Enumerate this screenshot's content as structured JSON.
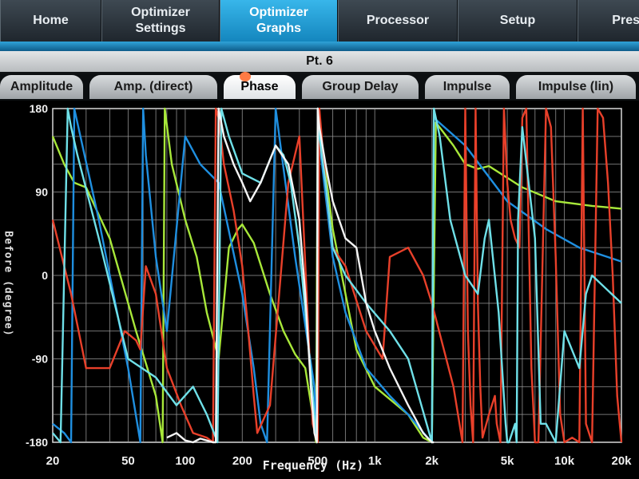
{
  "nav": {
    "items": [
      {
        "label": "Home"
      },
      {
        "label": "Optimizer Settings"
      },
      {
        "label": "Optimizer Graphs"
      },
      {
        "label": "Processor"
      },
      {
        "label": "Setup"
      },
      {
        "label": "Pres"
      }
    ],
    "active_index": 2
  },
  "point_title": "Pt. 6",
  "tabs": {
    "items": [
      {
        "label": "Amplitude"
      },
      {
        "label": "Amp. (direct)"
      },
      {
        "label": "Phase"
      },
      {
        "label": "Group Delay"
      },
      {
        "label": "Impulse"
      },
      {
        "label": "Impulse (lin)"
      }
    ],
    "active_index": 2
  },
  "colors": {
    "accent": "#1e9fd8",
    "plot_bg": "#000000",
    "grid": "#9a9a9a",
    "series_red": "#e8402a",
    "series_blue": "#1f8fe0",
    "series_green": "#a8e83a",
    "series_cyan": "#6fe0e8",
    "series_white": "#f4f4f4"
  },
  "chart_data": {
    "type": "line",
    "xlabel": "Frequency (Hz)",
    "ylabel": "Before (degree)",
    "xscale": "log",
    "xlim": [
      20,
      20000
    ],
    "ylim": [
      -180,
      180
    ],
    "x_ticks": [
      {
        "value": 20,
        "label": "20"
      },
      {
        "value": 50,
        "label": "50"
      },
      {
        "value": 100,
        "label": "100"
      },
      {
        "value": 200,
        "label": "200"
      },
      {
        "value": 500,
        "label": "500"
      },
      {
        "value": 1000,
        "label": "1k"
      },
      {
        "value": 2000,
        "label": "2k"
      },
      {
        "value": 5000,
        "label": "5k"
      },
      {
        "value": 10000,
        "label": "10k"
      },
      {
        "value": 20000,
        "label": "20k"
      }
    ],
    "y_ticks": [
      {
        "value": 180,
        "label": "180"
      },
      {
        "value": 90,
        "label": "90"
      },
      {
        "value": 0,
        "label": "0"
      },
      {
        "value": -90,
        "label": "-90"
      },
      {
        "value": -180,
        "label": "-180"
      }
    ],
    "grid": true,
    "series": [
      {
        "color": "#a8e83a",
        "x": [
          20,
          23,
          26,
          30,
          40,
          55,
          70,
          76,
          78,
          85,
          100,
          115,
          130,
          150,
          170,
          190,
          200,
          230,
          280,
          330,
          380,
          430,
          470,
          490,
          500,
          520,
          600,
          800,
          1000,
          1500,
          1800,
          2000,
          2100,
          2600,
          3000,
          3500,
          4000,
          6000,
          9000,
          14000,
          20000
        ],
        "y": [
          150,
          120,
          100,
          95,
          40,
          -60,
          -130,
          -180,
          180,
          120,
          60,
          20,
          -40,
          -90,
          30,
          50,
          55,
          35,
          -20,
          -60,
          -85,
          -100,
          -150,
          -180,
          180,
          150,
          50,
          -80,
          -120,
          -150,
          -175,
          -180,
          165,
          140,
          120,
          115,
          118,
          95,
          80,
          75,
          72
        ]
      },
      {
        "color": "#1f8fe0",
        "x": [
          20,
          23,
          25,
          26,
          35,
          50,
          58,
          60,
          62,
          70,
          80,
          100,
          120,
          150,
          200,
          230,
          250,
          270,
          300,
          380,
          480,
          495,
          500,
          520,
          600,
          700,
          900,
          1200,
          1500,
          1900,
          2000,
          2050,
          3000,
          5000,
          8000,
          12000,
          20000
        ],
        "y": [
          -160,
          -170,
          -180,
          180,
          60,
          -100,
          -180,
          180,
          130,
          20,
          -60,
          150,
          120,
          100,
          -20,
          -100,
          -160,
          -180,
          180,
          20,
          -120,
          -180,
          180,
          130,
          20,
          -40,
          -100,
          -130,
          -150,
          -175,
          -180,
          170,
          140,
          80,
          50,
          30,
          15
        ]
      },
      {
        "color": "#e8402a",
        "x": [
          20,
          25,
          30,
          40,
          48,
          55,
          58,
          62,
          70,
          80,
          95,
          110,
          130,
          140,
          145,
          150,
          160,
          180,
          200,
          215,
          230,
          240,
          280,
          350,
          400,
          470,
          500,
          510,
          550,
          600,
          700,
          900,
          1100,
          1200,
          1500,
          1800,
          2000,
          2600,
          2800,
          2900,
          3000,
          3100,
          3200,
          3300,
          3400,
          3500,
          3600,
          3700,
          4000,
          4300,
          4400,
          4600,
          4800,
          5000,
          5200,
          5500,
          5800,
          6000,
          6300,
          6700,
          7000,
          7300,
          8000,
          8500,
          9000,
          9500,
          10000,
          11000,
          12000,
          12500,
          13000,
          14000,
          15000,
          16000,
          17000,
          18000,
          19000,
          20000
        ],
        "y": [
          60,
          -20,
          -100,
          -100,
          -60,
          -70,
          -80,
          10,
          -20,
          -100,
          -140,
          -170,
          -175,
          -180,
          180,
          170,
          120,
          70,
          10,
          -60,
          -130,
          -170,
          -140,
          100,
          150,
          -160,
          -180,
          180,
          100,
          30,
          10,
          -60,
          -90,
          20,
          30,
          0,
          -30,
          -120,
          -160,
          -180,
          180,
          -60,
          -140,
          -180,
          180,
          -30,
          -120,
          -175,
          -150,
          -130,
          -160,
          -180,
          180,
          100,
          60,
          40,
          30,
          170,
          180,
          -100,
          -180,
          -180,
          180,
          160,
          20,
          -150,
          -180,
          -175,
          -180,
          180,
          -160,
          -180,
          180,
          170,
          100,
          0,
          -130,
          -180
        ]
      },
      {
        "color": "#6fe0e8",
        "x": [
          20,
          22,
          24,
          25,
          27,
          35,
          50,
          70,
          90,
          110,
          130,
          142,
          148,
          155,
          170,
          200,
          250,
          300,
          330,
          360,
          400,
          440,
          480,
          495,
          500,
          510,
          550,
          600,
          700,
          900,
          1200,
          1500,
          2000,
          2050,
          2200,
          2500,
          3000,
          3500,
          3800,
          4000,
          4500,
          4900,
          5000,
          5100,
          5500,
          5600,
          5700,
          6000,
          7000,
          7500,
          8000,
          9000,
          10000,
          12000,
          13000,
          14000,
          20000
        ],
        "y": [
          -170,
          -180,
          180,
          160,
          130,
          40,
          -90,
          -110,
          -140,
          -120,
          -150,
          -170,
          -180,
          180,
          150,
          110,
          100,
          140,
          130,
          100,
          30,
          -60,
          -150,
          -180,
          180,
          150,
          100,
          30,
          0,
          -30,
          -60,
          -90,
          -180,
          180,
          150,
          60,
          0,
          -20,
          40,
          60,
          -40,
          -160,
          -180,
          -180,
          -160,
          -180,
          60,
          160,
          40,
          -160,
          -160,
          -180,
          -60,
          -100,
          -20,
          0,
          -30
        ]
      },
      {
        "color": "#f4f4f4",
        "x": [
          80,
          90,
          100,
          110,
          120,
          130,
          140,
          145,
          150,
          160,
          180,
          200,
          220,
          250,
          300,
          350,
          400,
          430,
          460,
          480,
          495,
          500,
          510,
          550,
          600,
          700,
          800,
          900,
          1000,
          1200,
          1500,
          1800,
          2000,
          2050
        ],
        "y": [
          -175,
          -170,
          -178,
          -180,
          -176,
          -178,
          -180,
          -180,
          180,
          150,
          120,
          100,
          80,
          100,
          140,
          120,
          60,
          -20,
          -120,
          -170,
          -180,
          180,
          160,
          120,
          80,
          40,
          30,
          -30,
          -60,
          -100,
          -140,
          -170,
          -180,
          -180
        ]
      }
    ]
  }
}
